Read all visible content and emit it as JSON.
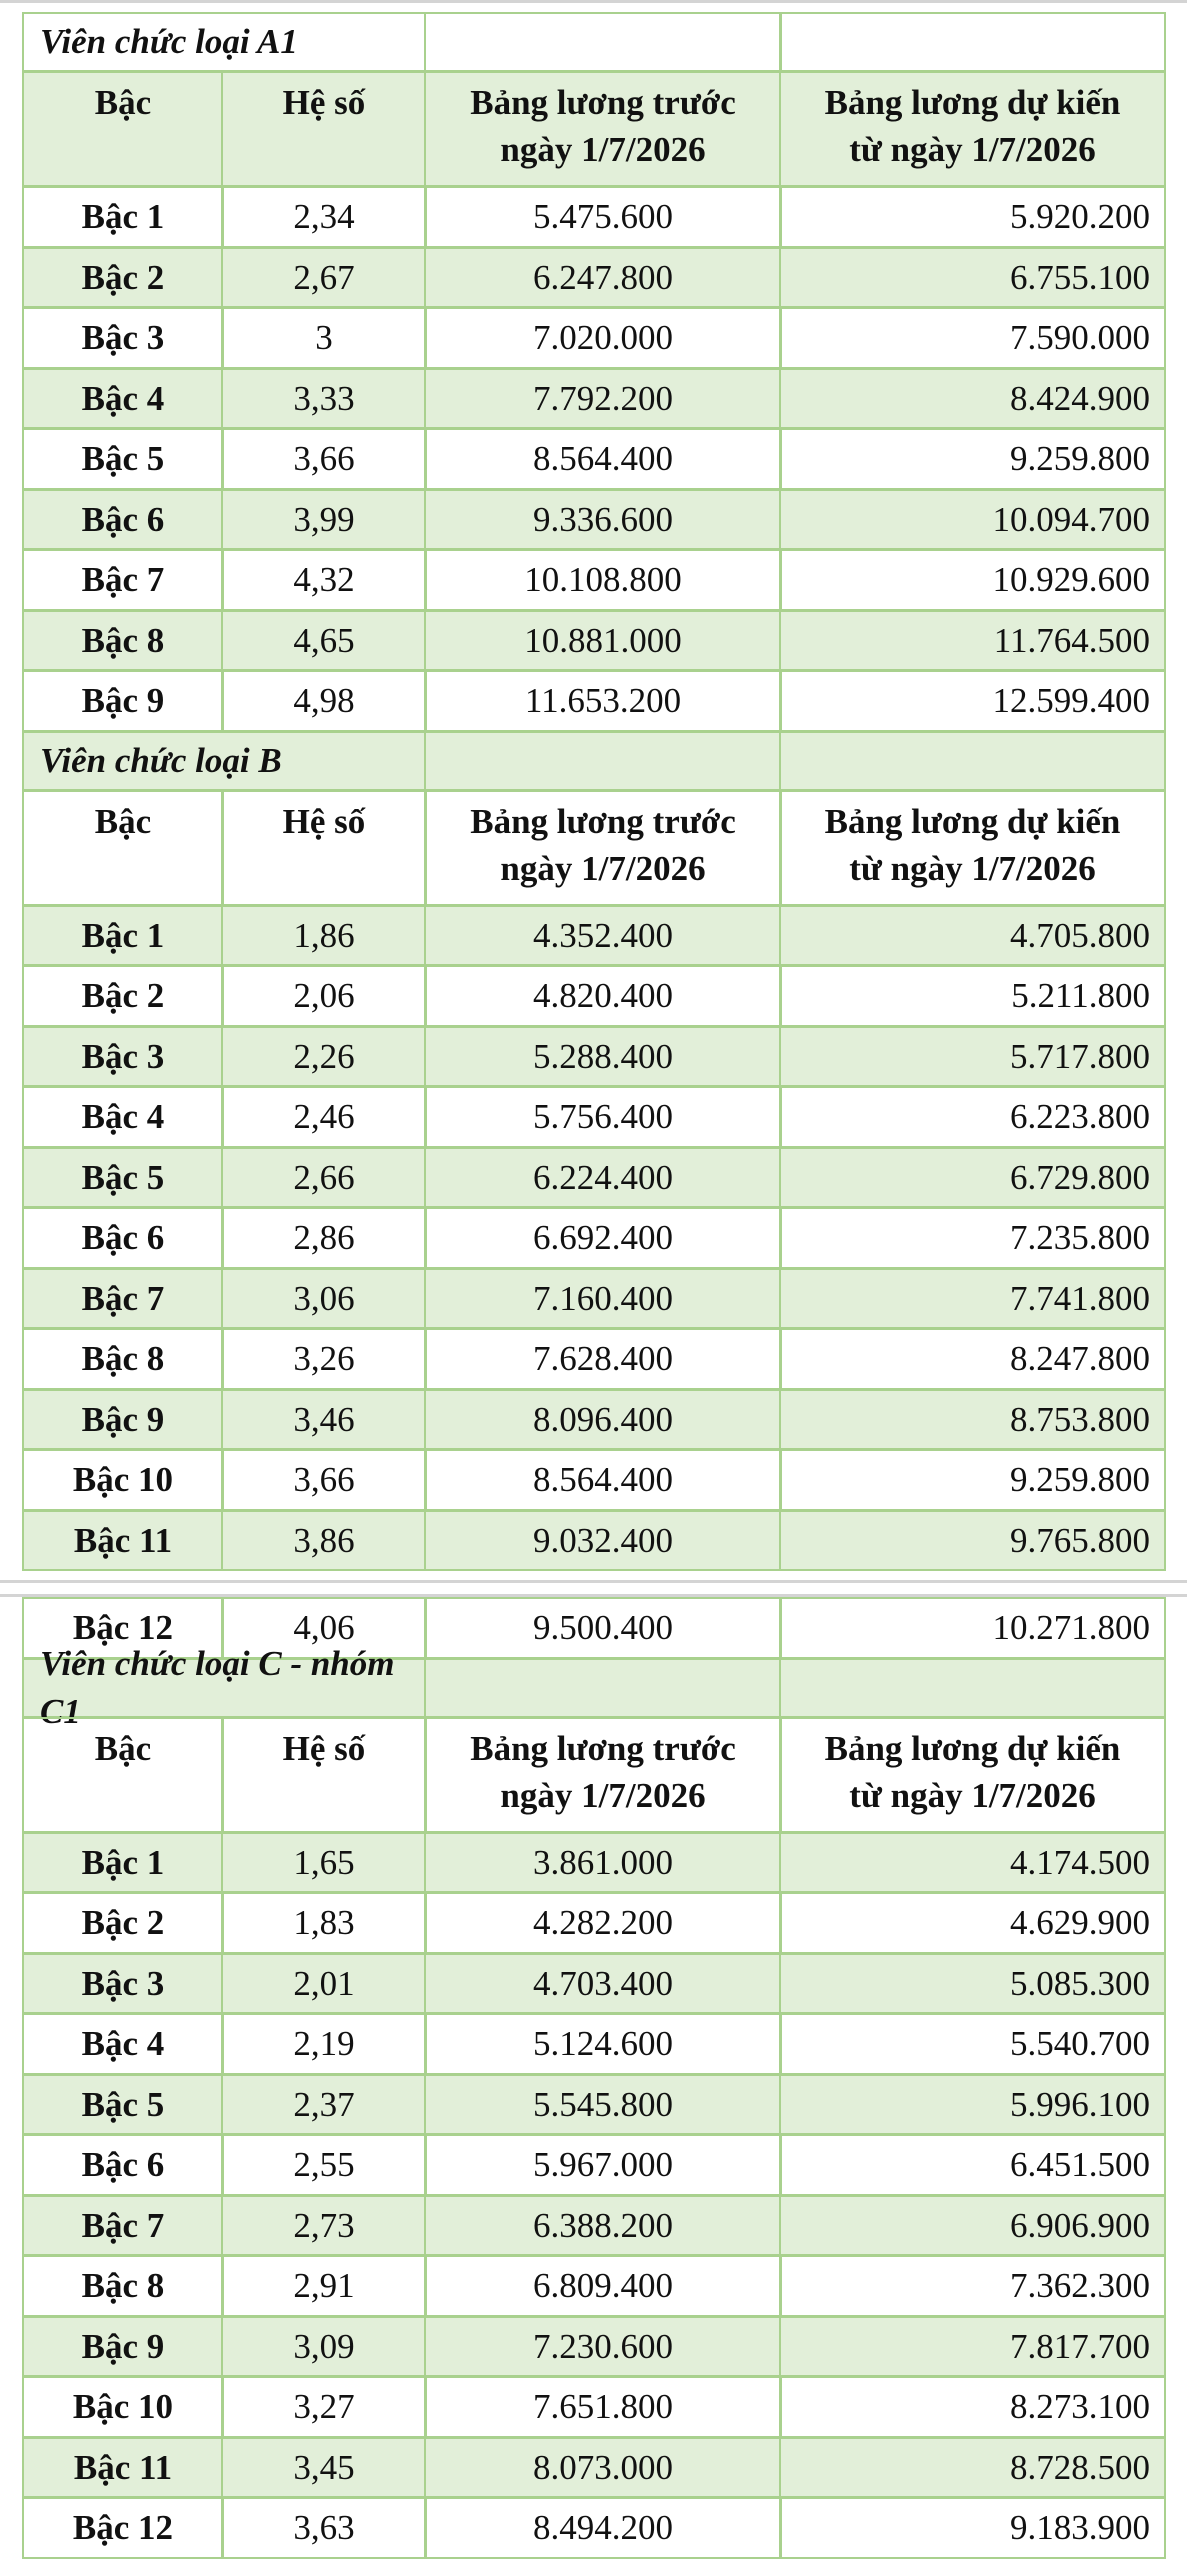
{
  "sections": [
    {
      "title": "Viên chức loại A1",
      "header": [
        "Bậc",
        "Hệ số",
        "Bảng lương trước\nngày 1/7/2026",
        "Bảng lương dự kiến\ntừ ngày 1/7/2026"
      ],
      "rows": [
        [
          "Bậc 1",
          "2,34",
          "5.475.600",
          "5.920.200"
        ],
        [
          "Bậc 2",
          "2,67",
          "6.247.800",
          "6.755.100"
        ],
        [
          "Bậc 3",
          "3",
          "7.020.000",
          "7.590.000"
        ],
        [
          "Bậc 4",
          "3,33",
          "7.792.200",
          "8.424.900"
        ],
        [
          "Bậc 5",
          "3,66",
          "8.564.400",
          "9.259.800"
        ],
        [
          "Bậc 6",
          "3,99",
          "9.336.600",
          "10.094.700"
        ],
        [
          "Bậc 7",
          "4,32",
          "10.108.800",
          "10.929.600"
        ],
        [
          "Bậc 8",
          "4,65",
          "10.881.000",
          "11.764.500"
        ],
        [
          "Bậc 9",
          "4,98",
          "11.653.200",
          "12.599.400"
        ]
      ]
    },
    {
      "title": "Viên chức loại B",
      "header": [
        "Bậc",
        "Hệ số",
        "Bảng lương trước\nngày 1/7/2026",
        "Bảng lương dự kiến\ntừ ngày 1/7/2026"
      ],
      "rows": [
        [
          "Bậc 1",
          "1,86",
          "4.352.400",
          "4.705.800"
        ],
        [
          "Bậc 2",
          "2,06",
          "4.820.400",
          "5.211.800"
        ],
        [
          "Bậc 3",
          "2,26",
          "5.288.400",
          "5.717.800"
        ],
        [
          "Bậc 4",
          "2,46",
          "5.756.400",
          "6.223.800"
        ],
        [
          "Bậc 5",
          "2,66",
          "6.224.400",
          "6.729.800"
        ],
        [
          "Bậc 6",
          "2,86",
          "6.692.400",
          "7.235.800"
        ],
        [
          "Bậc 7",
          "3,06",
          "7.160.400",
          "7.741.800"
        ],
        [
          "Bậc 8",
          "3,26",
          "7.628.400",
          "8.247.800"
        ],
        [
          "Bậc 9",
          "3,46",
          "8.096.400",
          "8.753.800"
        ],
        [
          "Bậc 10",
          "3,66",
          "8.564.400",
          "9.259.800"
        ],
        [
          "Bậc 11",
          "3,86",
          "9.032.400",
          "9.765.800"
        ],
        [
          "Bậc 12",
          "4,06",
          "9.500.400",
          "10.271.800"
        ]
      ]
    },
    {
      "title": "Viên chức loại C - nhóm C1",
      "header": [
        "Bậc",
        "Hệ số",
        "Bảng lương trước\nngày 1/7/2026",
        "Bảng lương dự kiến\ntừ ngày 1/7/2026"
      ],
      "rows": [
        [
          "Bậc 1",
          "1,65",
          "3.861.000",
          "4.174.500"
        ],
        [
          "Bậc 2",
          "1,83",
          "4.282.200",
          "4.629.900"
        ],
        [
          "Bậc 3",
          "2,01",
          "4.703.400",
          "5.085.300"
        ],
        [
          "Bậc 4",
          "2,19",
          "5.124.600",
          "5.540.700"
        ],
        [
          "Bậc 5",
          "2,37",
          "5.545.800",
          "5.996.100"
        ],
        [
          "Bậc 6",
          "2,55",
          "5.967.000",
          "6.451.500"
        ],
        [
          "Bậc 7",
          "2,73",
          "6.388.200",
          "6.906.900"
        ],
        [
          "Bậc 8",
          "2,91",
          "6.809.400",
          "7.362.300"
        ],
        [
          "Bậc 9",
          "3,09",
          "7.230.600",
          "7.817.700"
        ],
        [
          "Bậc 10",
          "3,27",
          "7.651.800",
          "8.273.100"
        ],
        [
          "Bậc 11",
          "3,45",
          "8.073.000",
          "8.728.500"
        ],
        [
          "Bậc 12",
          "3,63",
          "8.494.200",
          "9.183.900"
        ]
      ]
    }
  ]
}
